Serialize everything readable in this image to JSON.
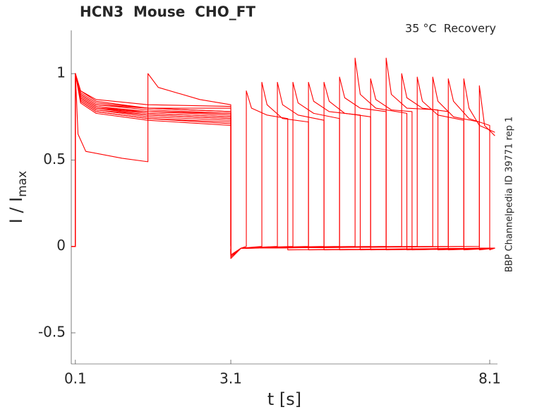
{
  "chart_data": {
    "type": "line",
    "title": "HCN3  Mouse  CHO_FT",
    "annotation": "35 °C  Recovery",
    "side_label": "BBP Channelpedia ID 39771 rep 1",
    "xlabel": "t [s]",
    "ylabel": {
      "text": "I / I",
      "sub": "max"
    },
    "xlim": [
      0.02,
      8.25
    ],
    "ylim": [
      -0.68,
      1.25
    ],
    "xticks": [
      0.1,
      3.1,
      8.1
    ],
    "yticks": [
      -0.5,
      0,
      0.5,
      1
    ],
    "series": [
      {
        "color": "#ff0000",
        "x": [
          0.02,
          0.1,
          0.1,
          0.2,
          0.5,
          1.5,
          3.1,
          3.1,
          3.3,
          3.4,
          3.4,
          3.5,
          3.8,
          4.2,
          4.2,
          8.2
        ],
        "values": [
          0,
          0,
          1,
          0.86,
          0.8,
          0.78,
          0.76,
          -0.07,
          -0.01,
          0,
          0.9,
          0.8,
          0.76,
          0.74,
          -0.02,
          -0.01
        ]
      },
      {
        "color": "#ff0000",
        "x": [
          0.02,
          0.1,
          0.1,
          0.2,
          0.5,
          1.5,
          3.1,
          3.1,
          3.3,
          3.7,
          3.7,
          3.8,
          4.1,
          4.6,
          4.6,
          8.2
        ],
        "values": [
          0,
          0,
          1,
          0.88,
          0.82,
          0.8,
          0.78,
          -0.06,
          -0.01,
          0,
          0.95,
          0.82,
          0.74,
          0.72,
          -0.02,
          -0.01
        ]
      },
      {
        "color": "#ff0000",
        "x": [
          0.02,
          0.1,
          0.1,
          0.2,
          0.5,
          1.5,
          3.1,
          3.1,
          3.3,
          4.0,
          4.0,
          4.1,
          4.4,
          4.9,
          4.9,
          8.2
        ],
        "values": [
          0,
          0,
          1,
          0.85,
          0.79,
          0.76,
          0.74,
          -0.05,
          -0.01,
          0,
          0.95,
          0.82,
          0.76,
          0.73,
          -0.02,
          -0.01
        ]
      },
      {
        "color": "#ff0000",
        "x": [
          0.02,
          0.1,
          0.1,
          0.2,
          0.5,
          1.5,
          3.1,
          3.1,
          3.3,
          4.3,
          4.3,
          4.4,
          4.7,
          5.2,
          5.2,
          8.2
        ],
        "values": [
          0,
          0,
          1,
          0.9,
          0.84,
          0.8,
          0.8,
          -0.06,
          -0.01,
          0,
          0.95,
          0.83,
          0.77,
          0.74,
          -0.02,
          -0.01
        ]
      },
      {
        "color": "#ff0000",
        "x": [
          0.02,
          0.1,
          0.1,
          0.2,
          0.5,
          1.5,
          3.1,
          3.1,
          3.3,
          4.6,
          4.6,
          4.7,
          5.0,
          5.6,
          5.6,
          8.2
        ],
        "values": [
          0,
          0,
          1,
          0.84,
          0.78,
          0.74,
          0.72,
          -0.05,
          -0.01,
          0,
          0.95,
          0.84,
          0.78,
          0.76,
          -0.02,
          -0.01
        ]
      },
      {
        "color": "#ff0000",
        "x": [
          0.02,
          0.1,
          0.1,
          0.2,
          0.5,
          1.5,
          3.1,
          3.1,
          3.3,
          4.9,
          4.9,
          5.0,
          5.3,
          5.8,
          5.8,
          8.2
        ],
        "values": [
          0,
          0,
          1,
          0.87,
          0.81,
          0.78,
          0.77,
          -0.06,
          -0.01,
          0,
          0.95,
          0.84,
          0.77,
          0.75,
          -0.02,
          -0.01
        ]
      },
      {
        "color": "#ff0000",
        "x": [
          0.02,
          0.1,
          0.1,
          0.15,
          0.3,
          1.0,
          1.5,
          1.5,
          1.7,
          2.5,
          3.1,
          3.1,
          3.3,
          5.2,
          5.2,
          5.3,
          5.6,
          6.1,
          6.1,
          8.2
        ],
        "values": [
          0,
          0,
          1,
          0.65,
          0.55,
          0.51,
          0.49,
          1.0,
          0.92,
          0.85,
          0.82,
          -0.05,
          -0.01,
          0,
          0.98,
          0.86,
          0.8,
          0.78,
          -0.02,
          -0.01
        ]
      },
      {
        "color": "#ff0000",
        "x": [
          0.02,
          0.1,
          0.1,
          0.2,
          0.5,
          1.5,
          3.1,
          3.1,
          3.3,
          5.5,
          5.5,
          5.6,
          5.9,
          6.5,
          6.5,
          8.2
        ],
        "values": [
          0,
          0,
          1,
          0.89,
          0.83,
          0.8,
          0.78,
          -0.06,
          -0.01,
          0,
          1.09,
          0.88,
          0.8,
          0.77,
          -0.02,
          -0.01
        ]
      },
      {
        "color": "#ff0000",
        "x": [
          0.02,
          0.1,
          0.1,
          0.2,
          0.5,
          1.5,
          3.1,
          3.1,
          3.3,
          5.8,
          5.8,
          5.9,
          6.2,
          6.6,
          6.6,
          8.2
        ],
        "values": [
          0,
          0,
          1,
          0.86,
          0.8,
          0.77,
          0.75,
          -0.05,
          -0.01,
          0,
          0.97,
          0.85,
          0.79,
          0.78,
          -0.02,
          -0.01
        ]
      },
      {
        "color": "#ff0000",
        "x": [
          0.02,
          0.1,
          0.1,
          0.2,
          0.5,
          1.5,
          3.1,
          3.1,
          3.3,
          6.1,
          6.1,
          6.2,
          6.5,
          7.1,
          7.1,
          8.2
        ],
        "values": [
          0,
          0,
          1,
          0.9,
          0.85,
          0.82,
          0.81,
          -0.06,
          -0.01,
          0,
          1.09,
          0.88,
          0.8,
          0.79,
          -0.02,
          -0.01
        ]
      },
      {
        "color": "#ff0000",
        "x": [
          0.02,
          0.1,
          0.1,
          0.2,
          0.5,
          1.5,
          3.1,
          3.1,
          3.3,
          6.4,
          6.4,
          6.5,
          6.8,
          7.3,
          7.3,
          8.2
        ],
        "values": [
          0,
          0,
          1,
          0.85,
          0.79,
          0.75,
          0.73,
          -0.05,
          -0.01,
          0,
          1.0,
          0.86,
          0.8,
          0.78,
          -0.02,
          -0.01
        ]
      },
      {
        "color": "#ff0000",
        "x": [
          0.02,
          0.1,
          0.1,
          0.2,
          0.5,
          1.5,
          3.1,
          3.1,
          3.3,
          6.7,
          6.7,
          6.8,
          7.1,
          7.6,
          7.6,
          8.2
        ],
        "values": [
          0,
          0,
          1,
          0.88,
          0.82,
          0.79,
          0.77,
          -0.06,
          -0.01,
          0,
          0.98,
          0.84,
          0.76,
          0.73,
          -0.02,
          -0.01
        ]
      },
      {
        "color": "#ff0000",
        "x": [
          0.02,
          0.1,
          0.1,
          0.2,
          0.5,
          1.5,
          3.1,
          3.1,
          3.3,
          7.0,
          7.0,
          7.1,
          7.4,
          7.9,
          7.9,
          8.2
        ],
        "values": [
          0,
          0,
          1,
          0.84,
          0.78,
          0.74,
          0.71,
          -0.05,
          -0.01,
          0,
          0.98,
          0.84,
          0.75,
          0.72,
          -0.02,
          -0.01
        ]
      },
      {
        "color": "#ff0000",
        "x": [
          0.02,
          0.1,
          0.1,
          0.2,
          0.5,
          1.5,
          3.1,
          3.1,
          3.3,
          7.3,
          7.3,
          7.4,
          7.7,
          8.1,
          8.1,
          8.2
        ],
        "values": [
          0,
          0,
          1,
          0.87,
          0.81,
          0.77,
          0.75,
          -0.06,
          -0.01,
          0,
          0.97,
          0.84,
          0.74,
          0.7,
          -0.02,
          -0.01
        ]
      },
      {
        "color": "#ff0000",
        "x": [
          0.02,
          0.1,
          0.1,
          0.2,
          0.5,
          1.5,
          3.1,
          3.1,
          3.3,
          7.6,
          7.6,
          7.7,
          7.9,
          8.2
        ],
        "values": [
          0,
          0,
          1,
          0.86,
          0.8,
          0.76,
          0.74,
          -0.05,
          -0.01,
          0,
          0.97,
          0.8,
          0.7,
          0.66
        ]
      },
      {
        "color": "#ff0000",
        "x": [
          0.02,
          0.1,
          0.1,
          0.2,
          0.5,
          1.5,
          3.1,
          3.1,
          3.3,
          7.9,
          7.9,
          8.0,
          8.2
        ],
        "values": [
          0,
          0,
          1,
          0.83,
          0.77,
          0.73,
          0.7,
          -0.05,
          -0.01,
          0,
          0.93,
          0.7,
          0.64
        ]
      }
    ]
  }
}
